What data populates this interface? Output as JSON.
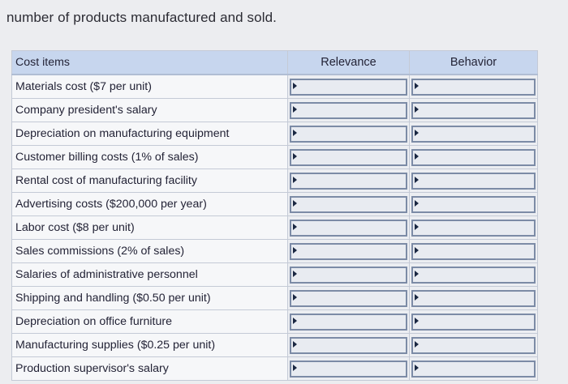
{
  "intro_text": "number of products manufactured and sold.",
  "table": {
    "headers": {
      "cost_items": "Cost items",
      "relevance": "Relevance",
      "behavior": "Behavior"
    },
    "rows": [
      "Materials cost ($7 per unit)",
      "Company president's salary",
      "Depreciation on manufacturing equipment",
      "Customer billing costs (1% of sales)",
      "Rental cost of manufacturing facility",
      "Advertising costs ($200,000 per year)",
      "Labor cost ($8 per unit)",
      "Sales commissions (2% of sales)",
      "Salaries of administrative personnel",
      "Shipping and handling ($0.50 per unit)",
      "Depreciation on office furniture",
      "Manufacturing supplies ($0.25 per unit)",
      "Production supervisor's salary"
    ]
  },
  "colors": {
    "header_bg": "#c7d6ee",
    "dropdown_border": "#7c8ba6"
  },
  "icons": {
    "dropdown": "caret-right-icon"
  }
}
